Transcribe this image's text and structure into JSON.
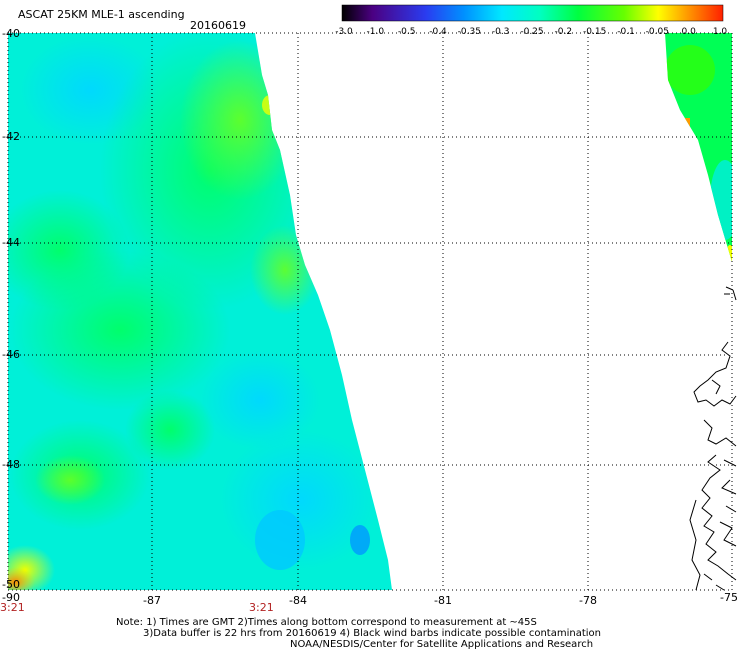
{
  "header": {
    "title": "ASCAT 25KM MLE-1 ascending",
    "date": "20160619"
  },
  "colorbar": {
    "labels": [
      "-3.0",
      "-1.0",
      "-0.5",
      "-0.4",
      "-0.35",
      "-0.3",
      "-0.25",
      "-0.2",
      "-0.15",
      "-0.1",
      "-0.05",
      "0.0",
      "1.0"
    ],
    "colors": [
      "#000000",
      "#4b0082",
      "#3a2ee0",
      "#0066ff",
      "#0099ff",
      "#00d8ff",
      "#00ffe0",
      "#00ff99",
      "#00ff33",
      "#66ff00",
      "#ccff00",
      "#ffcc00",
      "#ff8800",
      "#ff2200"
    ]
  },
  "axes": {
    "x_labels": [
      "-90",
      "-87",
      "-84",
      "-81",
      "-78",
      "-75"
    ],
    "y_labels": [
      "-40",
      "-42",
      "-44",
      "-46",
      "-48",
      "-50"
    ]
  },
  "times": [
    "3:21",
    "3:21"
  ],
  "notes": {
    "line1": "Note: 1) Times are GMT 2)Times along bottom correspond to measurement at ~45S",
    "line2": "3)Data buffer is 22 hrs from 20160619 4) Black wind barbs indicate possible contamination",
    "line3": "NOAA/NESDIS/Center for Satellite Applications and Research"
  }
}
